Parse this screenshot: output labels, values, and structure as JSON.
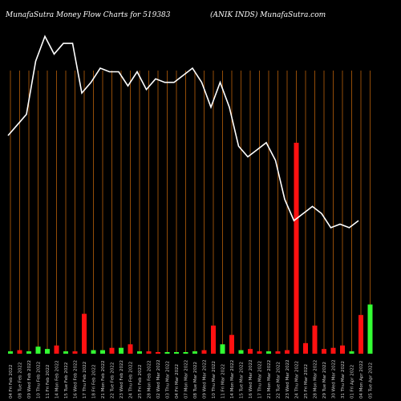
{
  "header": {
    "title": "MunafaSutra  Money Flow  Charts for 519383",
    "subtitle": "(ANIK INDS) MunafaSutra.com"
  },
  "colors": {
    "background": "#000000",
    "grid": "#b8600b",
    "price_line": "#ffffff",
    "up": "#33ff33",
    "down": "#ff1111"
  },
  "chart_data": {
    "type": "bar",
    "title": "MunafaSutra  Money Flow  Charts for 519383",
    "subtitle": "(ANIK INDS) MunafaSutra.com",
    "categories": [
      "04 Fri Feb 2022",
      "08 Tue Feb 2022",
      "09 Wed Feb 2022",
      "10 Thu Feb 2022",
      "11 Fri Feb 2022",
      "14 Mon Feb 2022",
      "15 Tue Feb 2022",
      "16 Wed Feb 2022",
      "17 Thu Feb 2022",
      "18 Fri Feb 2022",
      "21 Mon Feb 2022",
      "22 Tue Feb 2022",
      "23 Wed Feb 2022",
      "24 Thu Feb 2022",
      "25 Fri Feb 2022",
      "28 Mon Feb 2022",
      "02 Wed Mar 2022",
      "03 Thu Mar 2022",
      "04 Fri Mar 2022",
      "07 Mon Mar 2022",
      "08 Tue Mar 2022",
      "09 Wed Mar 2022",
      "10 Thu Mar 2022",
      "11 Fri Mar 2022",
      "14 Mon Mar 2022",
      "15 Tue Mar 2022",
      "16 Wed Mar 2022",
      "17 Thu Mar 2022",
      "21 Mon Mar 2022",
      "22 Tue Mar 2022",
      "23 Wed Mar 2022",
      "24 Thu Mar 2022",
      "25 Fri Mar 2022",
      "28 Mon Mar 2022",
      "29 Tue Mar 2022",
      "30 Wed Mar 2022",
      "31 Thu Mar 2022",
      "01 Fri Apr 2022",
      "04 Mon Apr 2022",
      "05 Tue Apr 2022"
    ],
    "series": [
      {
        "values": [
          2,
          3,
          2,
          6,
          4,
          7,
          2,
          2,
          34,
          3,
          3,
          5,
          5,
          8,
          2,
          2,
          1,
          1,
          1,
          1,
          2,
          3,
          24,
          8,
          16,
          3,
          4,
          2,
          2,
          2,
          3,
          180,
          9,
          24,
          4,
          5,
          7,
          2,
          33,
          42
        ]
      },
      {
        "values": [
          93,
          96,
          99,
          114,
          121,
          116,
          119,
          119,
          105,
          108,
          112,
          111,
          111,
          107,
          111,
          106,
          109,
          108,
          108,
          110,
          112,
          108,
          101,
          108,
          101,
          90,
          87,
          89,
          91,
          86,
          75,
          69,
          71,
          73,
          71,
          67,
          68,
          67,
          69,
          null
        ]
      }
    ],
    "bar_colors": [
      "green",
      "red",
      "green",
      "green",
      "green",
      "red",
      "green",
      "red",
      "red",
      "green",
      "green",
      "red",
      "green",
      "red",
      "green",
      "red",
      "red",
      "green",
      "green",
      "green",
      "green",
      "red",
      "red",
      "green",
      "red",
      "green",
      "red",
      "red",
      "green",
      "red",
      "red",
      "red",
      "red",
      "red",
      "red",
      "red",
      "red",
      "green",
      "red",
      "green"
    ],
    "grid": true
  }
}
